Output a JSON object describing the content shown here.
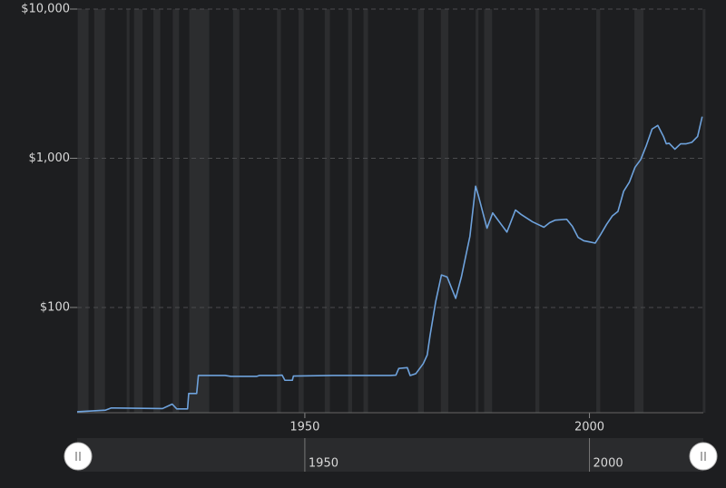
{
  "chart_data": {
    "type": "line",
    "log_y": true,
    "grid": true,
    "color": "#6ea2dc",
    "xlim": [
      1910,
      2020
    ],
    "ylim": [
      19.7,
      10000
    ],
    "xticks": [
      1950,
      2000
    ],
    "yticks": [
      {
        "value": 10000,
        "label": "$10,000"
      },
      {
        "value": 1000,
        "label": "$1,000"
      },
      {
        "value": 100,
        "label": "$100"
      }
    ],
    "shaded_ranges": [
      [
        1910.1,
        1912
      ],
      [
        1913,
        1914.9
      ],
      [
        1918.7,
        1919.2
      ],
      [
        1920,
        1921.5
      ],
      [
        1923.4,
        1924.6
      ],
      [
        1926.8,
        1927.9
      ],
      [
        1929.7,
        1933.2
      ],
      [
        1937.4,
        1938.5
      ],
      [
        1945.1,
        1945.8
      ],
      [
        1948.9,
        1949.8
      ],
      [
        1953.5,
        1954.4
      ],
      [
        1957.6,
        1958.3
      ],
      [
        1960.3,
        1961.1
      ],
      [
        1969.9,
        1970.9
      ],
      [
        1973.9,
        1975.2
      ],
      [
        1980,
        1980.5
      ],
      [
        1981.5,
        1982.9
      ],
      [
        1990.5,
        1991.2
      ],
      [
        2001.2,
        2001.9
      ],
      [
        2007.9,
        2009.5
      ],
      [
        2019.9,
        2020
      ]
    ],
    "x": [
      1910,
      1915,
      1916,
      1925,
      1926.7,
      1927.5,
      1929.4,
      1929.6,
      1931,
      1931.3,
      1936,
      1937,
      1941.5,
      1942,
      1945,
      1946,
      1946.5,
      1947.8,
      1948,
      1955,
      1965,
      1966,
      1966.5,
      1968,
      1968.5,
      1969.5,
      1970.8,
      1971.5,
      1972,
      1973,
      1974,
      1975,
      1976.5,
      1977.5,
      1979,
      1980,
      1980.5,
      1981.5,
      1982,
      1983,
      1984.5,
      1985.5,
      1987,
      1988,
      1990,
      1992,
      1993,
      1994,
      1996,
      1997,
      1998,
      1999,
      2000,
      2001,
      2002,
      2003,
      2004,
      2005,
      2006,
      2007,
      2008,
      2009,
      2010,
      2011,
      2012,
      2013,
      2013.5,
      2014,
      2015,
      2016,
      2017,
      2018,
      2019,
      2019.8
    ],
    "values": [
      20.0,
      20.5,
      21.2,
      21.0,
      22.5,
      20.9,
      20.9,
      26.5,
      26.5,
      35,
      35,
      34.5,
      34.5,
      35,
      35,
      35.2,
      32.5,
      32.5,
      34.7,
      35,
      35,
      35.2,
      39,
      39.5,
      35,
      36,
      42,
      48,
      65,
      110,
      165,
      160,
      115,
      160,
      300,
      650,
      560,
      400,
      340,
      430,
      360,
      320,
      450,
      420,
      375,
      345,
      370,
      385,
      390,
      350,
      295,
      280,
      275,
      270,
      310,
      360,
      410,
      440,
      600,
      690,
      870,
      980,
      1220,
      1570,
      1660,
      1400,
      1250,
      1260,
      1150,
      1250,
      1250,
      1280,
      1400,
      1900
    ]
  }
}
